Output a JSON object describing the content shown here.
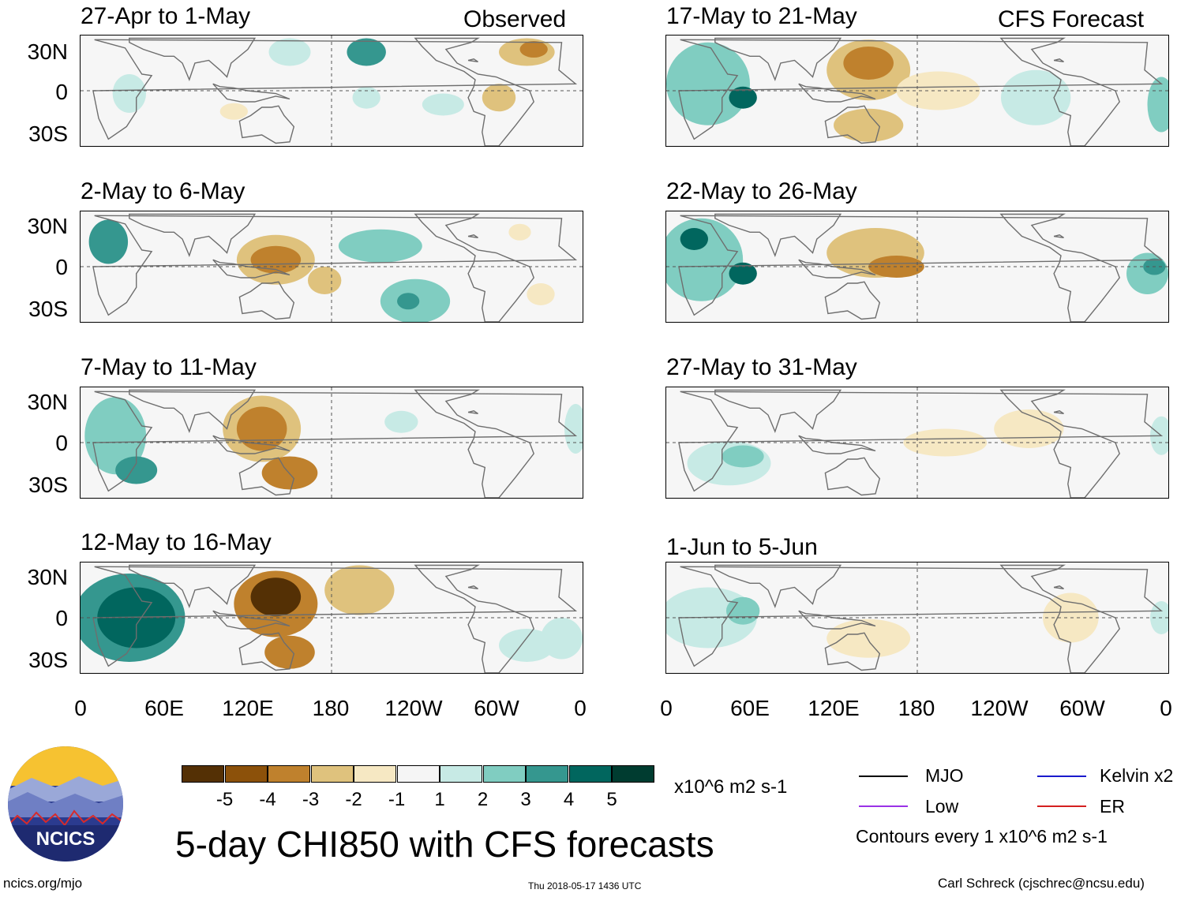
{
  "columns": {
    "observed_label": "Observed",
    "forecast_label": "CFS Forecast"
  },
  "panels": {
    "observed": [
      {
        "title": "27-Apr to 1-May"
      },
      {
        "title": "2-May to 6-May"
      },
      {
        "title": "7-May to 11-May"
      },
      {
        "title": "12-May to 16-May"
      }
    ],
    "forecast": [
      {
        "title": "17-May to 21-May"
      },
      {
        "title": "22-May to 26-May"
      },
      {
        "title": "27-May to 31-May"
      },
      {
        "title": "1-Jun to 5-Jun"
      }
    ]
  },
  "axes": {
    "lat_labels": [
      "30N",
      "0",
      "30S"
    ],
    "lon_labels": [
      "0",
      "60E",
      "120E",
      "180",
      "120W",
      "60W",
      "0"
    ]
  },
  "colorbar": {
    "units": "x10^6 m2 s-1",
    "ticks": [
      "-5",
      "-4",
      "-3",
      "-2",
      "-1",
      "1",
      "2",
      "3",
      "4",
      "5"
    ],
    "colors": [
      "#543005",
      "#8c510a",
      "#bf812d",
      "#dfc27d",
      "#f6e8c3",
      "#f5f5f5",
      "#c7eae5",
      "#80cdc1",
      "#35978f",
      "#01665e",
      "#003c30"
    ]
  },
  "title": "5-day CHI850 with CFS forecasts",
  "legend": {
    "mjo": "MJO",
    "low": "Low",
    "kelvin": "Kelvin x2",
    "er": "ER",
    "contours_note": "Contours every 1 x10^6 m2 s-1",
    "colors": {
      "mjo": "#000000",
      "low": "#9a32e6",
      "kelvin": "#1a1acc",
      "er": "#d42020"
    }
  },
  "logo": {
    "text": "NCICS"
  },
  "footer": {
    "url": "ncics.org/mjo",
    "timestamp": "Thu 2018-05-17 1436 UTC",
    "author": "Carl Schreck (cjschrec@ncsu.edu)"
  }
}
